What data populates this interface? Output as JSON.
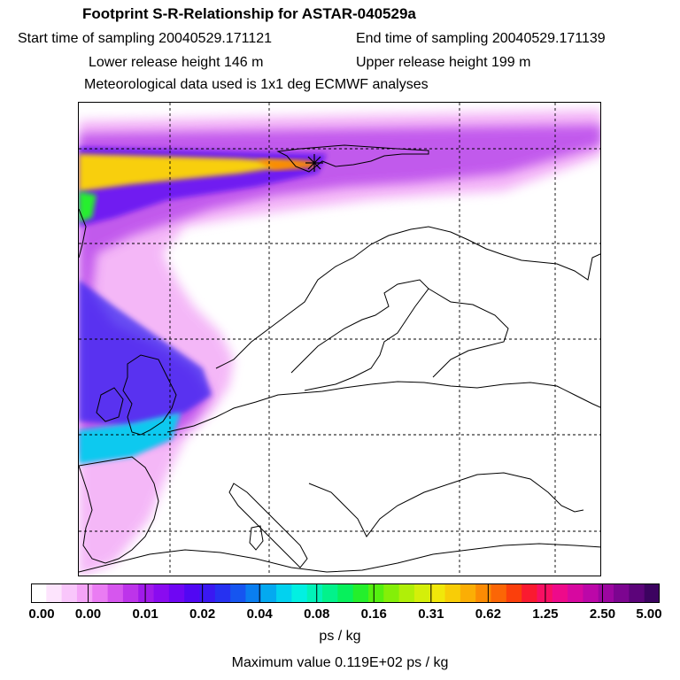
{
  "header": {
    "title": "Footprint S-R-Relationship for ASTAR-040529a",
    "start_time": "Start time of sampling 20040529.171121",
    "end_time": "End time of sampling 20040529.171139",
    "lower_height": "Lower release height  146 m",
    "upper_height": "Upper release height  199 m",
    "met_data": "Meteorological data used is 1x1 deg ECMWF analyses"
  },
  "chart_data": {
    "type": "heatmap",
    "title": "Footprint S-R-Relationship for ASTAR-040529a",
    "map": "Europe / North Atlantic footprint",
    "gridlines": "dashed",
    "receptor_marker": "star",
    "colorbar": {
      "tick_labels": [
        "0.00",
        "0.00",
        "0.01",
        "0.02",
        "0.04",
        "0.08",
        "0.16",
        "0.31",
        "0.62",
        "1.25",
        "2.50",
        "5.00"
      ],
      "colors": [
        "#ffffff",
        "#fde4fd",
        "#f9c6fb",
        "#f4a4f7",
        "#ea7cf3",
        "#d656ee",
        "#bd34ea",
        "#a11aea",
        "#8a0bf0",
        "#6f06f3",
        "#5107f3",
        "#3a18f2",
        "#2631f1",
        "#1655f0",
        "#0a7ef0",
        "#04a9f0",
        "#02d2ef",
        "#02f0e2",
        "#02f2b8",
        "#02f28b",
        "#07f05c",
        "#24ef2c",
        "#54f010",
        "#84ef08",
        "#b0ef08",
        "#d4ef0a",
        "#f1e80a",
        "#f8cd07",
        "#fbae05",
        "#fb8b04",
        "#fb6606",
        "#fb3f0c",
        "#fa1a30",
        "#f80f63",
        "#ee0a8a",
        "#d708a0",
        "#bc07a8",
        "#9c06a0",
        "#7c0590",
        "#5c047a",
        "#3c0360"
      ],
      "unit": "ps / kg"
    },
    "max_value": "Maximum value  0.119E+02 ps / kg",
    "unit": "ps / kg"
  }
}
